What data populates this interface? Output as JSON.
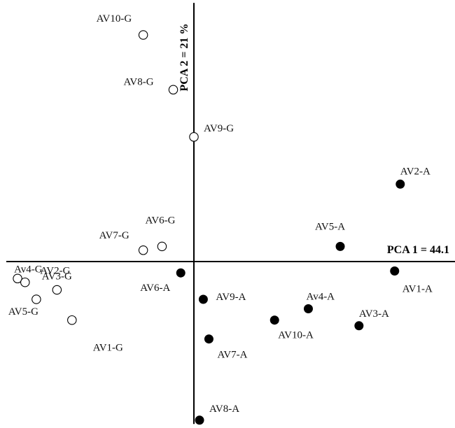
{
  "chart_data": {
    "type": "scatter",
    "xlabel": "PCA 1 = 44.1",
    "ylabel": "PCA 2 = 21 %",
    "xlim": [
      -1.0,
      1.45
    ],
    "ylim": [
      -0.86,
      1.37
    ],
    "grid": false,
    "legend": "none",
    "series": [
      {
        "marker": "open-circle",
        "color": "#000000",
        "points": [
          {
            "label": "AV10-G",
            "x": -0.27,
            "y": 1.2
          },
          {
            "label": "AV8-G",
            "x": -0.11,
            "y": 0.91
          },
          {
            "label": "AV9-G",
            "x": 0.0,
            "y": 0.66
          },
          {
            "label": "AV6-G",
            "x": -0.17,
            "y": 0.08
          },
          {
            "label": "AV7-G",
            "x": -0.27,
            "y": 0.06
          },
          {
            "label": "Av4-G",
            "x": -0.94,
            "y": -0.09
          },
          {
            "label": "AV3-G",
            "x": -0.9,
            "y": -0.11
          },
          {
            "label": "AV2-G",
            "x": -0.73,
            "y": -0.15
          },
          {
            "label": "AV5-G",
            "x": -0.84,
            "y": -0.2
          },
          {
            "label": "AV1-G",
            "x": -0.65,
            "y": -0.31
          }
        ]
      },
      {
        "marker": "filled-circle",
        "color": "#000000",
        "points": [
          {
            "label": "AV2-A",
            "x": 1.1,
            "y": 0.41
          },
          {
            "label": "AV5-A",
            "x": 0.78,
            "y": 0.08
          },
          {
            "label": "AV1-A",
            "x": 1.07,
            "y": -0.05
          },
          {
            "label": "AV6-A",
            "x": -0.07,
            "y": -0.06
          },
          {
            "label": "AV9-A",
            "x": 0.05,
            "y": -0.2
          },
          {
            "label": "Av4-A",
            "x": 0.61,
            "y": -0.25
          },
          {
            "label": "AV10-A",
            "x": 0.43,
            "y": -0.31
          },
          {
            "label": "AV3-A",
            "x": 0.88,
            "y": -0.34
          },
          {
            "label": "AV7-A",
            "x": 0.08,
            "y": -0.41
          },
          {
            "label": "AV8-A",
            "x": 0.03,
            "y": -0.84
          }
        ]
      }
    ]
  }
}
